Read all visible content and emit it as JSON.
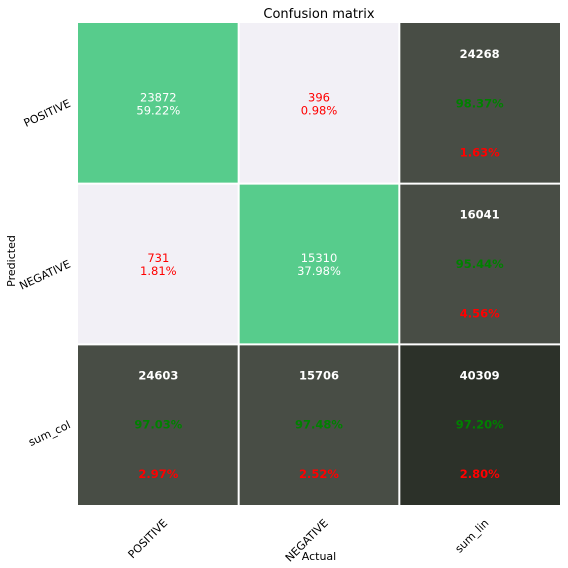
{
  "chart_data": {
    "type": "heatmap",
    "title": "Confusion matrix",
    "xlabel": "Actual",
    "ylabel": "Predicted",
    "x_categories": [
      "POSITIVE",
      "NEGATIVE",
      "sum_lin"
    ],
    "y_categories": [
      "POSITIVE",
      "NEGATIVE",
      "sum_col"
    ],
    "grid": "white separators",
    "colors": {
      "diagonal": "#57cc8c",
      "off_diagonal": "#f2f0f6",
      "sum_cell": "#484d45",
      "total_cell": "#2c3129",
      "text_light": "#ffffff",
      "text_error": "#ff0000",
      "text_correct": "#008000",
      "separator": "#ffffff"
    },
    "cells": [
      {
        "row": 0,
        "col": 0,
        "kind": "diagonal",
        "count": "23872",
        "pct": "59.22%"
      },
      {
        "row": 0,
        "col": 1,
        "kind": "off",
        "count": "396",
        "pct": "0.98%"
      },
      {
        "row": 0,
        "col": 2,
        "kind": "sum",
        "count": "24268",
        "good": "98.37%",
        "bad": "1.63%"
      },
      {
        "row": 1,
        "col": 0,
        "kind": "off",
        "count": "731",
        "pct": "1.81%"
      },
      {
        "row": 1,
        "col": 1,
        "kind": "diagonal",
        "count": "15310",
        "pct": "37.98%"
      },
      {
        "row": 1,
        "col": 2,
        "kind": "sum",
        "count": "16041",
        "good": "95.44%",
        "bad": "4.56%"
      },
      {
        "row": 2,
        "col": 0,
        "kind": "sum",
        "count": "24603",
        "good": "97.03%",
        "bad": "2.97%"
      },
      {
        "row": 2,
        "col": 1,
        "kind": "sum",
        "count": "15706",
        "good": "97.48%",
        "bad": "2.52%"
      },
      {
        "row": 2,
        "col": 2,
        "kind": "total",
        "count": "40309",
        "good": "97.20%",
        "bad": "2.80%"
      }
    ]
  }
}
